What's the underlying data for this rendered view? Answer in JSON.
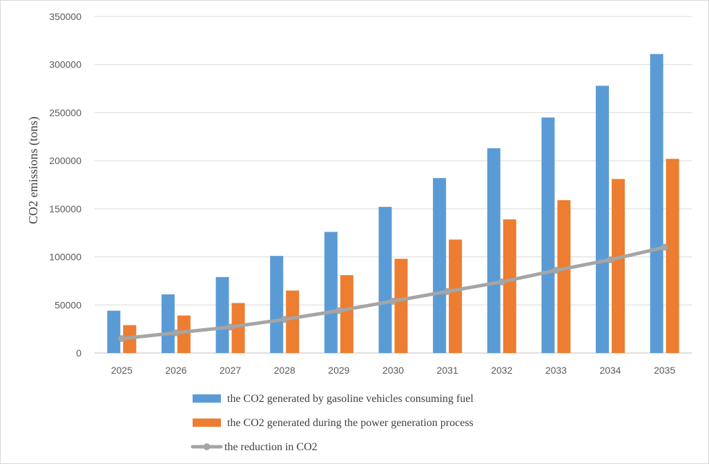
{
  "chart_data": {
    "type": "bar",
    "title": "",
    "xlabel": "",
    "ylabel": "CO2  emissions (tons)",
    "ylim": [
      0,
      350000
    ],
    "ytick_step": 50000,
    "ytick_labels": [
      "0",
      "50000",
      "100000",
      "150000",
      "200000",
      "250000",
      "300000",
      "350000"
    ],
    "grid": true,
    "legend_position": "bottom",
    "categories": [
      "2025",
      "2026",
      "2027",
      "2028",
      "2029",
      "2030",
      "2031",
      "2032",
      "2033",
      "2034",
      "2035"
    ],
    "series": [
      {
        "name": "the CO2 generated by gasoline vehicles consuming fuel",
        "kind": "bar",
        "color": "#5b9bd5",
        "values": [
          44000,
          61000,
          79000,
          101000,
          126000,
          152000,
          182000,
          213000,
          245000,
          278000,
          311000
        ]
      },
      {
        "name": "the CO2 generated during the power generation process",
        "kind": "bar",
        "color": "#ed7d31",
        "values": [
          29000,
          39000,
          52000,
          65000,
          81000,
          98000,
          118000,
          139000,
          159000,
          181000,
          202000
        ]
      },
      {
        "name": "the reduction in CO2",
        "kind": "line",
        "color": "#a5a5a5",
        "values": [
          15000,
          21000,
          27000,
          35000,
          44000,
          54000,
          64000,
          74000,
          86000,
          97000,
          110000
        ]
      }
    ]
  }
}
